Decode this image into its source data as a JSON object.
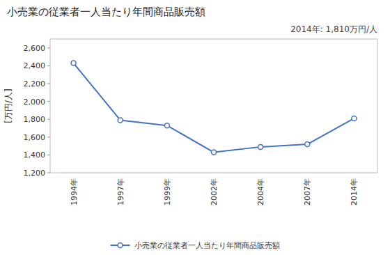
{
  "chart_data": {
    "type": "line",
    "title": "小売業の従業者一人当たり年間商品販売額",
    "y_label": "[万円/人]",
    "annotation": "2014年: 1,810万円/人",
    "categories": [
      "1994年",
      "1997年",
      "1999年",
      "2002年",
      "2004年",
      "2007年",
      "2014年"
    ],
    "series": [
      {
        "name": "小売業の従業者一人当たり年間商品販売額",
        "color": "#4472C4",
        "marker": "circle",
        "values": [
          2430,
          1790,
          1730,
          1430,
          1490,
          1520,
          1810
        ]
      }
    ],
    "ylim": [
      1200,
      2700
    ],
    "yticks": [
      {
        "value": 1200,
        "label": "1,200"
      },
      {
        "value": 1400,
        "label": "1,400"
      },
      {
        "value": 1600,
        "label": "1,600"
      },
      {
        "value": 1800,
        "label": "1,800"
      },
      {
        "value": 2000,
        "label": "2,000"
      },
      {
        "value": 2200,
        "label": "2,200"
      },
      {
        "value": 2400,
        "label": "2,400"
      },
      {
        "value": 2600,
        "label": "2,600"
      }
    ],
    "grid": false,
    "legend": "bottom"
  }
}
